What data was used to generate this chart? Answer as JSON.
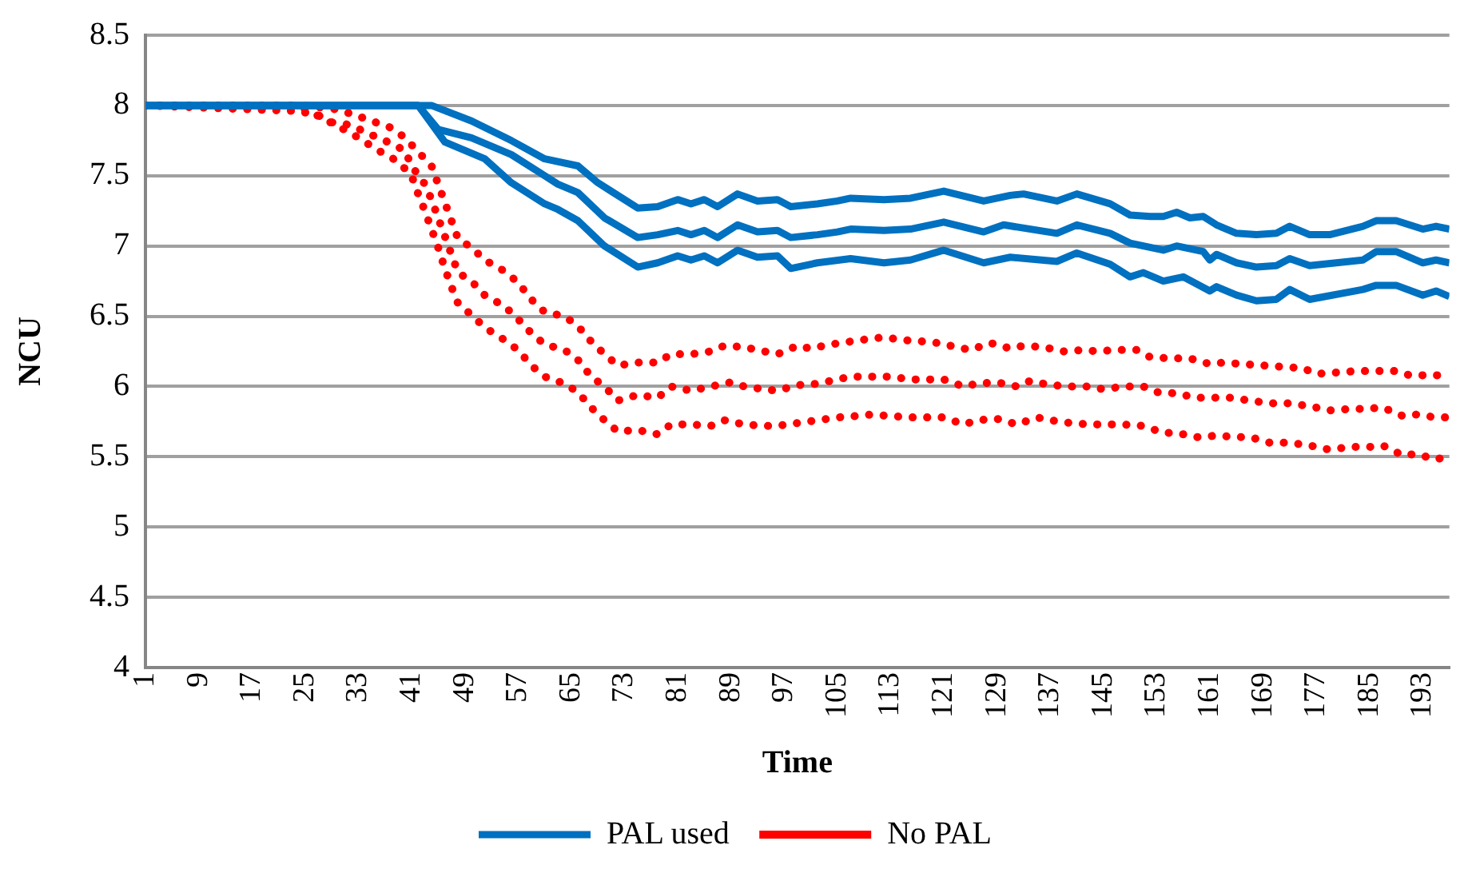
{
  "chart_data": {
    "type": "line",
    "xlabel": "Time",
    "ylabel": "NCU",
    "xlim": [
      1,
      197
    ],
    "xticks": [
      1,
      9,
      17,
      25,
      33,
      41,
      49,
      57,
      65,
      73,
      81,
      89,
      97,
      105,
      113,
      121,
      129,
      137,
      145,
      153,
      161,
      169,
      177,
      185,
      193
    ],
    "ylim": [
      4,
      8.5
    ],
    "yticks": [
      4,
      4.5,
      5,
      5.5,
      6,
      6.5,
      7,
      7.5,
      8,
      8.5
    ],
    "grid": "y",
    "legend": "bottom",
    "marker": "none",
    "series": [
      {
        "name": "PAL used",
        "color": "#0070c0",
        "line_style": "solid",
        "x": [
          1,
          42,
          44,
          50,
          56,
          61,
          66,
          69,
          71,
          75,
          78,
          81,
          83,
          85,
          87,
          90,
          93,
          96,
          98,
          102,
          105,
          107,
          112,
          116,
          121,
          127,
          131,
          133,
          138,
          141,
          146,
          149,
          152,
          154,
          156,
          158,
          160,
          162,
          165,
          168,
          171,
          173,
          176,
          179,
          184,
          186,
          189,
          193,
          195,
          197
        ],
        "values": [
          8,
          8,
          8,
          7.89,
          7.75,
          7.62,
          7.57,
          7.45,
          7.39,
          7.27,
          7.28,
          7.33,
          7.3,
          7.33,
          7.28,
          7.37,
          7.32,
          7.33,
          7.28,
          7.3,
          7.32,
          7.34,
          7.33,
          7.34,
          7.39,
          7.32,
          7.36,
          7.37,
          7.32,
          7.37,
          7.3,
          7.22,
          7.21,
          7.21,
          7.24,
          7.2,
          7.21,
          7.15,
          7.09,
          7.08,
          7.09,
          7.14,
          7.08,
          7.08,
          7.14,
          7.18,
          7.18,
          7.12,
          7.14,
          7.12
        ]
      },
      {
        "color": "#0070c0",
        "line_style": "solid",
        "x": [
          1,
          42,
          45,
          50,
          56,
          61,
          63,
          66,
          70,
          75,
          78,
          81,
          83,
          85,
          87,
          90,
          93,
          96,
          98,
          102,
          105,
          107,
          112,
          116,
          121,
          127,
          130,
          138,
          141,
          146,
          149,
          152,
          154,
          156,
          160,
          161,
          162,
          165,
          168,
          171,
          173,
          176,
          184,
          186,
          189,
          193,
          195,
          197
        ],
        "values": [
          8,
          8,
          7.83,
          7.77,
          7.65,
          7.5,
          7.44,
          7.38,
          7.2,
          7.06,
          7.08,
          7.11,
          7.08,
          7.11,
          7.06,
          7.15,
          7.1,
          7.11,
          7.06,
          7.08,
          7.1,
          7.12,
          7.11,
          7.12,
          7.17,
          7.1,
          7.15,
          7.09,
          7.15,
          7.09,
          7.02,
          6.99,
          6.97,
          7,
          6.96,
          6.9,
          6.94,
          6.88,
          6.85,
          6.86,
          6.91,
          6.86,
          6.9,
          6.96,
          6.96,
          6.88,
          6.9,
          6.88
        ]
      },
      {
        "color": "#0070c0",
        "line_style": "solid",
        "x": [
          1,
          42,
          46,
          52,
          56,
          61,
          63,
          66,
          70,
          75,
          78,
          81,
          83,
          85,
          87,
          90,
          93,
          96,
          98,
          102,
          107,
          112,
          116,
          121,
          127,
          131,
          138,
          141,
          146,
          149,
          151,
          154,
          157,
          161,
          162,
          165,
          168,
          171,
          173,
          176,
          184,
          186,
          189,
          193,
          195,
          197
        ],
        "values": [
          8,
          8,
          7.74,
          7.62,
          7.45,
          7.3,
          7.26,
          7.18,
          7,
          6.85,
          6.88,
          6.93,
          6.9,
          6.93,
          6.88,
          6.97,
          6.92,
          6.93,
          6.84,
          6.88,
          6.91,
          6.88,
          6.9,
          6.97,
          6.88,
          6.92,
          6.89,
          6.95,
          6.87,
          6.78,
          6.81,
          6.75,
          6.78,
          6.68,
          6.71,
          6.65,
          6.61,
          6.62,
          6.69,
          6.62,
          6.69,
          6.72,
          6.72,
          6.65,
          6.68,
          6.64
        ]
      },
      {
        "name": "No PAL",
        "color": "#ff0000",
        "line_style": "dotted",
        "x": [
          1,
          24,
          29,
          32,
          35,
          38,
          40,
          42,
          44,
          45,
          46,
          47,
          48,
          50,
          52,
          55,
          57,
          59,
          61,
          64,
          66,
          68,
          70,
          72,
          75,
          78,
          80,
          83,
          86,
          88,
          91,
          93,
          96,
          99,
          101,
          104,
          107,
          110,
          112,
          115,
          118,
          120,
          123,
          125,
          128,
          131,
          133,
          136,
          139,
          142,
          144,
          147,
          150,
          152,
          155,
          158,
          161,
          163,
          166,
          169,
          172,
          175,
          177,
          180,
          183,
          186,
          189,
          191,
          194,
          197
        ],
        "values": [
          8,
          8,
          7.98,
          7.94,
          7.89,
          7.84,
          7.77,
          7.67,
          7.57,
          7.44,
          7.31,
          7.18,
          7.05,
          6.99,
          6.9,
          6.82,
          6.74,
          6.62,
          6.53,
          6.5,
          6.43,
          6.32,
          6.23,
          6.15,
          6.17,
          6.17,
          6.23,
          6.23,
          6.25,
          6.29,
          6.28,
          6.26,
          6.23,
          6.29,
          6.27,
          6.3,
          6.32,
          6.34,
          6.35,
          6.33,
          6.32,
          6.31,
          6.28,
          6.26,
          6.31,
          6.27,
          6.29,
          6.28,
          6.25,
          6.26,
          6.25,
          6.26,
          6.26,
          6.21,
          6.2,
          6.2,
          6.16,
          6.17,
          6.16,
          6.15,
          6.14,
          6.13,
          6.09,
          6.1,
          6.11,
          6.11,
          6.11,
          6.08,
          6.08,
          6.08
        ]
      },
      {
        "color": "#ff0000",
        "line_style": "dotted",
        "x": [
          1,
          24,
          27,
          29,
          32,
          34,
          37,
          40,
          41,
          43,
          44,
          45,
          46,
          48,
          50,
          52,
          55,
          57,
          59,
          61,
          64,
          66,
          68,
          70,
          72,
          75,
          78,
          80,
          83,
          86,
          89,
          91,
          94,
          96,
          99,
          102,
          105,
          107,
          110,
          113,
          116,
          118,
          121,
          124,
          126,
          129,
          132,
          134,
          137,
          140,
          143,
          145,
          148,
          151,
          153,
          156,
          159,
          162,
          164,
          167,
          170,
          173,
          176,
          179,
          182,
          184,
          187,
          190,
          192,
          195,
          197
        ],
        "values": [
          8,
          7.96,
          7.93,
          7.88,
          7.86,
          7.81,
          7.75,
          7.68,
          7.57,
          7.44,
          7.33,
          7.2,
          7.07,
          6.81,
          6.75,
          6.65,
          6.57,
          6.48,
          6.38,
          6.3,
          6.26,
          6.19,
          6.07,
          6,
          5.9,
          5.94,
          5.92,
          6,
          5.97,
          6,
          6.03,
          6,
          5.98,
          5.97,
          6.01,
          6.02,
          6.05,
          6.07,
          6.07,
          6.07,
          6.05,
          6.05,
          6.05,
          6,
          6.02,
          6.03,
          6,
          6.04,
          6.01,
          6,
          6,
          5.98,
          6,
          6,
          5.96,
          5.95,
          5.92,
          5.92,
          5.92,
          5.9,
          5.88,
          5.88,
          5.86,
          5.83,
          5.84,
          5.84,
          5.85,
          5.79,
          5.8,
          5.78,
          5.78
        ]
      },
      {
        "color": "#ff0000",
        "line_style": "dotted",
        "x": [
          1,
          24,
          32,
          34,
          36,
          39,
          41,
          42,
          43,
          44,
          45,
          46,
          47,
          48,
          50,
          52,
          55,
          57,
          59,
          61,
          64,
          66,
          68,
          70,
          72,
          75,
          78,
          80,
          83,
          86,
          88,
          91,
          94,
          96,
          99,
          102,
          105,
          108,
          110,
          113,
          116,
          119,
          121,
          124,
          126,
          129,
          132,
          135,
          137,
          140,
          143,
          145,
          148,
          151,
          154,
          156,
          159,
          162,
          165,
          167,
          170,
          173,
          176,
          179,
          182,
          185,
          187,
          190,
          192,
          195,
          197
        ],
        "values": [
          8,
          8,
          7.8,
          7.74,
          7.68,
          7.6,
          7.5,
          7.37,
          7.25,
          7.12,
          6.99,
          6.84,
          6.71,
          6.59,
          6.51,
          6.42,
          6.33,
          6.26,
          6.15,
          6.07,
          6.02,
          5.96,
          5.85,
          5.76,
          5.68,
          5.69,
          5.66,
          5.73,
          5.73,
          5.72,
          5.76,
          5.73,
          5.72,
          5.72,
          5.74,
          5.76,
          5.78,
          5.79,
          5.8,
          5.79,
          5.78,
          5.78,
          5.78,
          5.73,
          5.76,
          5.77,
          5.73,
          5.78,
          5.76,
          5.74,
          5.73,
          5.73,
          5.73,
          5.72,
          5.67,
          5.67,
          5.64,
          5.65,
          5.64,
          5.64,
          5.6,
          5.6,
          5.58,
          5.55,
          5.57,
          5.57,
          5.58,
          5.51,
          5.52,
          5.48,
          5.51
        ]
      }
    ]
  }
}
